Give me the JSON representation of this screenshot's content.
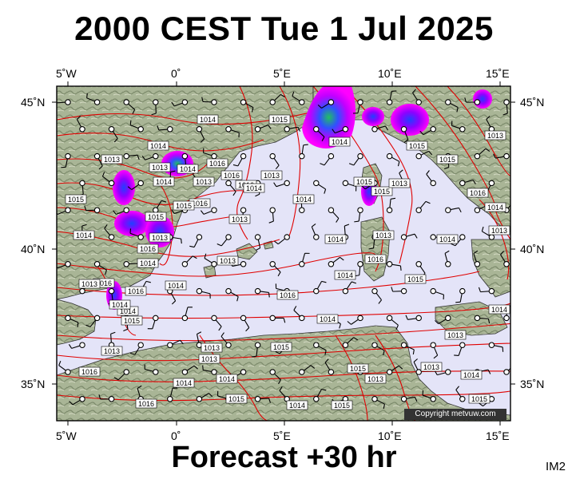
{
  "title": "2000 CEST Tue 1 Jul 2025",
  "footer": "Forecast +30 hr",
  "image_code": "IM2",
  "copyright": "Copyright metvuw.com",
  "axes": {
    "lon_labels": [
      "5˚W",
      "0˚",
      "5˚E",
      "10˚E",
      "15˚E"
    ],
    "lat_labels": [
      "45˚N",
      "40˚N",
      "35˚N"
    ]
  },
  "isobar_labels": [
    "1014",
    "1014",
    "1016",
    "1016",
    "1016",
    "1013",
    "1016",
    "1014",
    "1015",
    "1015",
    "1013",
    "1016",
    "1014",
    "1016",
    "1016",
    "1014",
    "1014",
    "1014",
    "1015",
    "1013",
    "1014",
    "1016",
    "1015",
    "1015",
    "1014",
    "1015",
    "1016",
    "1014",
    "1013",
    "1013",
    "1013",
    "1014",
    "1015",
    "1014",
    "1015",
    "1015",
    "1013",
    "1015",
    "1016",
    "1016",
    "1013",
    "1014",
    "1013",
    "1013",
    "1014",
    "1013",
    "1014",
    "1013",
    "1013",
    "1014",
    "1014",
    "1015",
    "1014",
    "1013",
    "1014",
    "1016",
    "1014",
    "1013",
    "1014",
    "1015",
    "1013",
    "1015",
    "1013",
    "1015",
    "1014",
    "1013",
    "1015"
  ],
  "colors": {
    "sea": "#e4e4f8",
    "isobar": "#e00000",
    "rain_magenta": "#ff00ff",
    "rain_blue": "#3050ff",
    "rain_green": "#20c060"
  }
}
